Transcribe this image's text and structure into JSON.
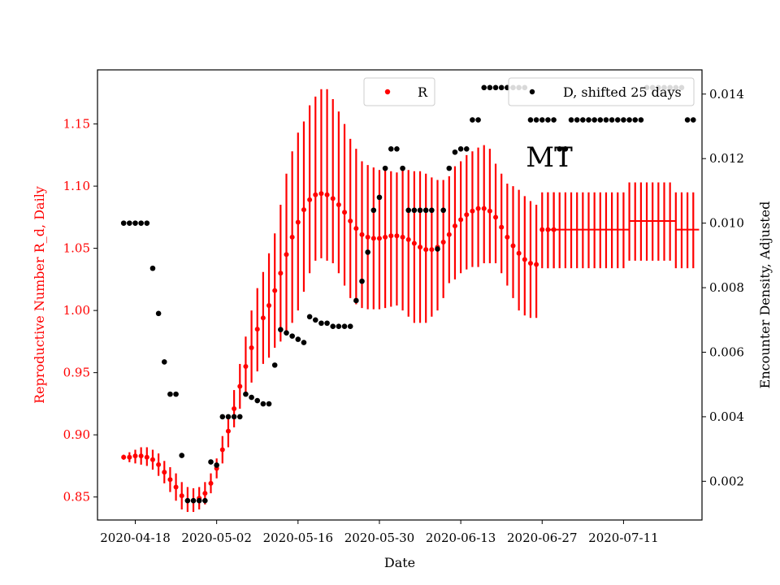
{
  "chart_data": {
    "type": "scatter",
    "title": "",
    "annotation": "MT",
    "xlabel": "Date",
    "ylabel_left": "Reproductive Number R_d, Daily",
    "ylabel_right": "Encounter Density, Adjusted",
    "x_tick_labels": [
      "2020-04-18",
      "2020-05-02",
      "2020-05-16",
      "2020-05-30",
      "2020-06-13",
      "2020-06-27",
      "2020-07-11"
    ],
    "x_tick_days": [
      0,
      14,
      28,
      42,
      56,
      70,
      84
    ],
    "x_range_days": [
      -6.5,
      97.5
    ],
    "ylim_left": [
      0.8315,
      1.1935
    ],
    "ylim_right": [
      0.0008,
      0.01475
    ],
    "y_ticks_left": [
      {
        "value": 0.85,
        "label": "0.85"
      },
      {
        "value": 0.9,
        "label": "0.90"
      },
      {
        "value": 0.95,
        "label": "0.95"
      },
      {
        "value": 1.0,
        "label": "1.00"
      },
      {
        "value": 1.05,
        "label": "1.05"
      },
      {
        "value": 1.1,
        "label": "1.10"
      },
      {
        "value": 1.15,
        "label": "1.15"
      }
    ],
    "y_ticks_right": [
      {
        "value": 0.002,
        "label": "0.002"
      },
      {
        "value": 0.004,
        "label": "0.004"
      },
      {
        "value": 0.006,
        "label": "0.006"
      },
      {
        "value": 0.008,
        "label": "0.008"
      },
      {
        "value": 0.01,
        "label": "0.010"
      },
      {
        "value": 0.012,
        "label": "0.012"
      },
      {
        "value": 0.014,
        "label": "0.014"
      }
    ],
    "colors": {
      "R": "#ff0000",
      "D": "#000000",
      "left_axis": "#ff0000",
      "right_axis": "#000000"
    },
    "series": [
      {
        "name": "R",
        "axis": "left",
        "x_days": [
          -2,
          -1,
          0,
          1,
          2,
          3,
          4,
          5,
          6,
          7,
          8,
          9,
          10,
          11,
          12,
          13,
          14,
          15,
          16,
          17,
          18,
          19,
          20,
          21,
          22,
          23,
          24,
          25,
          26,
          27,
          28,
          29,
          30,
          31,
          32,
          33,
          34,
          35,
          36,
          37,
          38,
          39,
          40,
          41,
          42,
          43,
          44,
          45,
          46,
          47,
          48,
          49,
          50,
          51,
          52,
          53,
          54,
          55,
          56,
          57,
          58,
          59,
          60,
          61,
          62,
          63,
          64,
          65,
          66,
          67,
          68,
          69,
          70,
          71,
          72
        ],
        "values": [
          0.882,
          0.882,
          0.883,
          0.883,
          0.882,
          0.88,
          0.876,
          0.87,
          0.864,
          0.858,
          0.851,
          0.847,
          0.847,
          0.849,
          0.853,
          0.861,
          0.873,
          0.888,
          0.903,
          0.921,
          0.939,
          0.955,
          0.97,
          0.985,
          0.994,
          1.004,
          1.016,
          1.03,
          1.045,
          1.059,
          1.071,
          1.081,
          1.089,
          1.093,
          1.094,
          1.093,
          1.09,
          1.085,
          1.079,
          1.072,
          1.066,
          1.061,
          1.059,
          1.058,
          1.058,
          1.059,
          1.06,
          1.06,
          1.059,
          1.057,
          1.054,
          1.051,
          1.049,
          1.049,
          1.051,
          1.055,
          1.061,
          1.068,
          1.073,
          1.077,
          1.08,
          1.082,
          1.082,
          1.08,
          1.075,
          1.067,
          1.059,
          1.052,
          1.046,
          1.041,
          1.038,
          1.037,
          1.065,
          1.065,
          1.065
        ],
        "err_low": [
          0.88,
          0.878,
          0.877,
          0.876,
          0.875,
          0.872,
          0.867,
          0.861,
          0.854,
          0.847,
          0.84,
          0.838,
          0.838,
          0.84,
          0.844,
          0.853,
          0.865,
          0.877,
          0.89,
          0.906,
          0.921,
          0.931,
          0.942,
          0.951,
          0.957,
          0.962,
          0.97,
          0.975,
          0.98,
          0.99,
          1.0,
          1.015,
          1.03,
          1.04,
          1.042,
          1.04,
          1.038,
          1.03,
          1.02,
          1.01,
          1.005,
          1.002,
          1.001,
          1.001,
          1.001,
          1.002,
          1.003,
          1.004,
          1.0,
          0.995,
          0.99,
          0.99,
          0.99,
          0.995,
          1.0,
          1.01,
          1.022,
          1.025,
          1.03,
          1.033,
          1.035,
          1.035,
          1.038,
          1.038,
          1.038,
          1.03,
          1.02,
          1.01,
          1.0,
          0.996,
          0.994,
          0.994,
          1.034,
          1.034,
          1.034
        ],
        "err_high": [
          0.884,
          0.886,
          0.888,
          0.89,
          0.89,
          0.888,
          0.885,
          0.879,
          0.874,
          0.869,
          0.862,
          0.858,
          0.857,
          0.858,
          0.862,
          0.869,
          0.881,
          0.899,
          0.916,
          0.936,
          0.957,
          0.979,
          1.0,
          1.018,
          1.031,
          1.046,
          1.062,
          1.085,
          1.11,
          1.128,
          1.143,
          1.152,
          1.165,
          1.172,
          1.178,
          1.178,
          1.17,
          1.16,
          1.15,
          1.138,
          1.13,
          1.12,
          1.117,
          1.115,
          1.113,
          1.113,
          1.112,
          1.111,
          1.113,
          1.113,
          1.112,
          1.112,
          1.11,
          1.107,
          1.105,
          1.105,
          1.108,
          1.116,
          1.12,
          1.125,
          1.128,
          1.131,
          1.133,
          1.13,
          1.118,
          1.11,
          1.102,
          1.1,
          1.097,
          1.092,
          1.088,
          1.085,
          1.095,
          1.095,
          1.095
        ],
        "steps": [
          {
            "x0": 71,
            "x1": 85,
            "value": 1.065,
            "err_low": 1.034,
            "err_high": 1.095
          },
          {
            "x0": 85,
            "x1": 93,
            "value": 1.072,
            "err_low": 1.04,
            "err_high": 1.103
          },
          {
            "x0": 93,
            "x1": 97,
            "value": 1.065,
            "err_low": 1.034,
            "err_high": 1.095
          }
        ],
        "plotted_marks": [
          {
            "x": 71,
            "value": 1.065,
            "err_low": 1.034,
            "err_high": 1.095
          },
          {
            "x": 71.999,
            "value": 1.065,
            "err_low": 1.034,
            "err_high": 1.095
          },
          {
            "x": 72,
            "value": 1.065,
            "err_low": 1.034,
            "err_high": 1.095
          },
          {
            "x": 73,
            "value": 1.065,
            "err_low": 1.034,
            "err_high": 1.095
          },
          {
            "x": 74,
            "value": 1.065,
            "err_low": 1.034,
            "err_high": 1.095
          },
          {
            "x": 75,
            "value": 1.065,
            "err_low": 1.034,
            "err_high": 1.095
          },
          {
            "x": 76,
            "value": 1.065,
            "err_low": 1.034,
            "err_high": 1.095
          },
          {
            "x": 77,
            "value": 1.065,
            "err_low": 1.034,
            "err_high": 1.095
          },
          {
            "x": 78,
            "value": 1.065,
            "err_low": 1.034,
            "err_high": 1.095
          },
          {
            "x": 79,
            "value": 1.065,
            "err_low": 1.034,
            "err_high": 1.095
          },
          {
            "x": 80,
            "value": 1.065,
            "err_low": 1.034,
            "err_high": 1.095
          },
          {
            "x": 81,
            "value": 1.065,
            "err_low": 1.034,
            "err_high": 1.095
          },
          {
            "x": 82,
            "value": 1.065,
            "err_low": 1.034,
            "err_high": 1.095
          },
          {
            "x": 83,
            "value": 1.065,
            "err_low": 1.034,
            "err_high": 1.095
          },
          {
            "x": 84,
            "value": 1.065,
            "err_low": 1.034,
            "err_high": 1.095
          },
          {
            "x": 85,
            "value": 1.072,
            "err_low": 1.04,
            "err_high": 1.103
          },
          {
            "x": 86,
            "value": 1.072,
            "err_low": 1.04,
            "err_high": 1.103
          },
          {
            "x": 87,
            "value": 1.072,
            "err_low": 1.04,
            "err_high": 1.103
          },
          {
            "x": 88,
            "value": 1.072,
            "err_low": 1.04,
            "err_high": 1.103
          },
          {
            "x": 89,
            "value": 1.072,
            "err_low": 1.04,
            "err_high": 1.103
          },
          {
            "x": 90,
            "value": 1.072,
            "err_low": 1.04,
            "err_high": 1.103
          },
          {
            "x": 91,
            "value": 1.072,
            "err_low": 1.04,
            "err_high": 1.103
          },
          {
            "x": 92,
            "value": 1.072,
            "err_low": 1.04,
            "err_high": 1.103
          },
          {
            "x": 93,
            "value": 1.065,
            "err_low": 1.034,
            "err_high": 1.095
          },
          {
            "x": 94,
            "value": 1.065,
            "err_low": 1.034,
            "err_high": 1.095
          },
          {
            "x": 95,
            "value": 1.065,
            "err_low": 1.034,
            "err_high": 1.095
          },
          {
            "x": 96,
            "value": 1.065,
            "err_low": 1.034,
            "err_high": 1.095
          },
          {
            "x": 96.999,
            "value": 1.065,
            "err_low": 1.034,
            "err_high": 1.095
          }
        ]
      },
      {
        "name": "D, shifted 25 days",
        "axis": "right",
        "x_days": [
          -2,
          -1,
          0,
          1,
          2,
          3,
          4,
          5,
          6,
          7,
          8,
          9,
          10,
          11,
          12,
          13,
          14,
          15,
          16,
          17,
          18,
          19,
          20,
          21,
          22,
          23,
          24,
          25,
          26,
          27,
          28,
          29,
          30,
          31,
          32,
          33,
          34,
          35,
          36,
          37,
          38,
          39,
          40,
          41,
          42,
          43,
          44,
          45,
          46,
          47,
          48,
          49,
          50,
          51,
          52,
          53,
          54,
          55,
          56,
          57,
          58,
          59,
          60,
          61,
          62,
          63,
          64,
          65,
          66,
          67,
          68,
          69,
          70,
          71,
          72,
          73,
          74,
          75,
          76,
          77,
          78,
          79,
          80,
          81,
          82,
          83,
          84,
          85,
          86,
          87,
          88,
          89,
          90,
          91,
          92,
          93,
          94,
          95,
          96
        ],
        "values": [
          0.01,
          0.01,
          0.01,
          0.01,
          0.01,
          0.0086,
          0.0072,
          0.0057,
          0.0047,
          0.0047,
          0.0028,
          0.0014,
          0.0014,
          0.0014,
          0.0014,
          0.0026,
          0.0025,
          0.004,
          0.004,
          0.004,
          0.004,
          0.0047,
          0.0046,
          0.0045,
          0.0044,
          0.0044,
          0.0056,
          0.0067,
          0.0066,
          0.0065,
          0.0064,
          0.0063,
          0.0071,
          0.007,
          0.0069,
          0.0069,
          0.0068,
          0.0068,
          0.0068,
          0.0068,
          0.0076,
          0.0082,
          0.0091,
          0.0104,
          0.0108,
          0.0117,
          0.0123,
          0.0123,
          0.0117,
          0.0104,
          0.0104,
          0.0104,
          0.0104,
          0.0104,
          0.0092,
          0.0104,
          0.0117,
          0.0122,
          0.0123,
          0.0123,
          0.0132,
          0.0132,
          0.0142,
          0.0142,
          0.0142,
          0.0142,
          0.0142,
          0.0142,
          0.0142,
          0.0142,
          0.0132,
          0.0132,
          0.0132,
          0.0132,
          0.0132,
          0.0123,
          0.0123,
          0.0132,
          0.0132,
          0.0132,
          0.0132,
          0.0132,
          0.0132,
          0.0132,
          0.0132,
          0.0132,
          0.0132,
          0.0132,
          0.0132,
          0.0132,
          0.0142,
          0.0142,
          0.0142,
          0.0142,
          0.0142,
          0.0142,
          0.0142,
          0.0132,
          0.0132
        ]
      }
    ],
    "legend": [
      {
        "label": "R",
        "placement": "top-center"
      },
      {
        "label": "D, shifted 25 days",
        "placement": "top-right"
      }
    ]
  }
}
